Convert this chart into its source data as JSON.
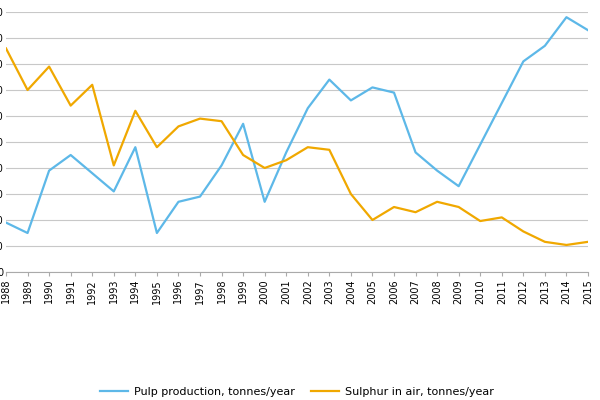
{
  "years": [
    1988,
    1989,
    1990,
    1991,
    1992,
    1993,
    1994,
    1995,
    1996,
    1997,
    1998,
    1999,
    2000,
    2001,
    2002,
    2003,
    2004,
    2005,
    2006,
    2007,
    2008,
    2009,
    2010,
    2011,
    2012,
    2013,
    2014,
    2015
  ],
  "pulp": [
    95000,
    75000,
    195000,
    225000,
    190000,
    155000,
    240000,
    75000,
    135000,
    145000,
    205000,
    285000,
    135000,
    230000,
    315000,
    370000,
    330000,
    355000,
    345000,
    230000,
    195000,
    165000,
    245000,
    325000,
    405000,
    435000,
    490000,
    465000
  ],
  "sulphur": [
    430000,
    350000,
    395000,
    320000,
    360000,
    205000,
    310000,
    240000,
    280000,
    295000,
    290000,
    225000,
    200000,
    215000,
    240000,
    235000,
    150000,
    100000,
    125000,
    115000,
    135000,
    125000,
    98000,
    105000,
    78000,
    58000,
    52000,
    58000
  ],
  "pulp_color": "#5db8e8",
  "sulphur_color": "#f0a800",
  "background_color": "#ffffff",
  "grid_color": "#c8c8c8",
  "ylim": [
    0,
    500000
  ],
  "ytick_step": 50000,
  "legend_pulp": "Pulp production, tonnes/year",
  "legend_sulphur": "Sulphur in air, tonnes/year",
  "line_width": 1.6,
  "tick_fontsize": 7,
  "legend_fontsize": 8
}
